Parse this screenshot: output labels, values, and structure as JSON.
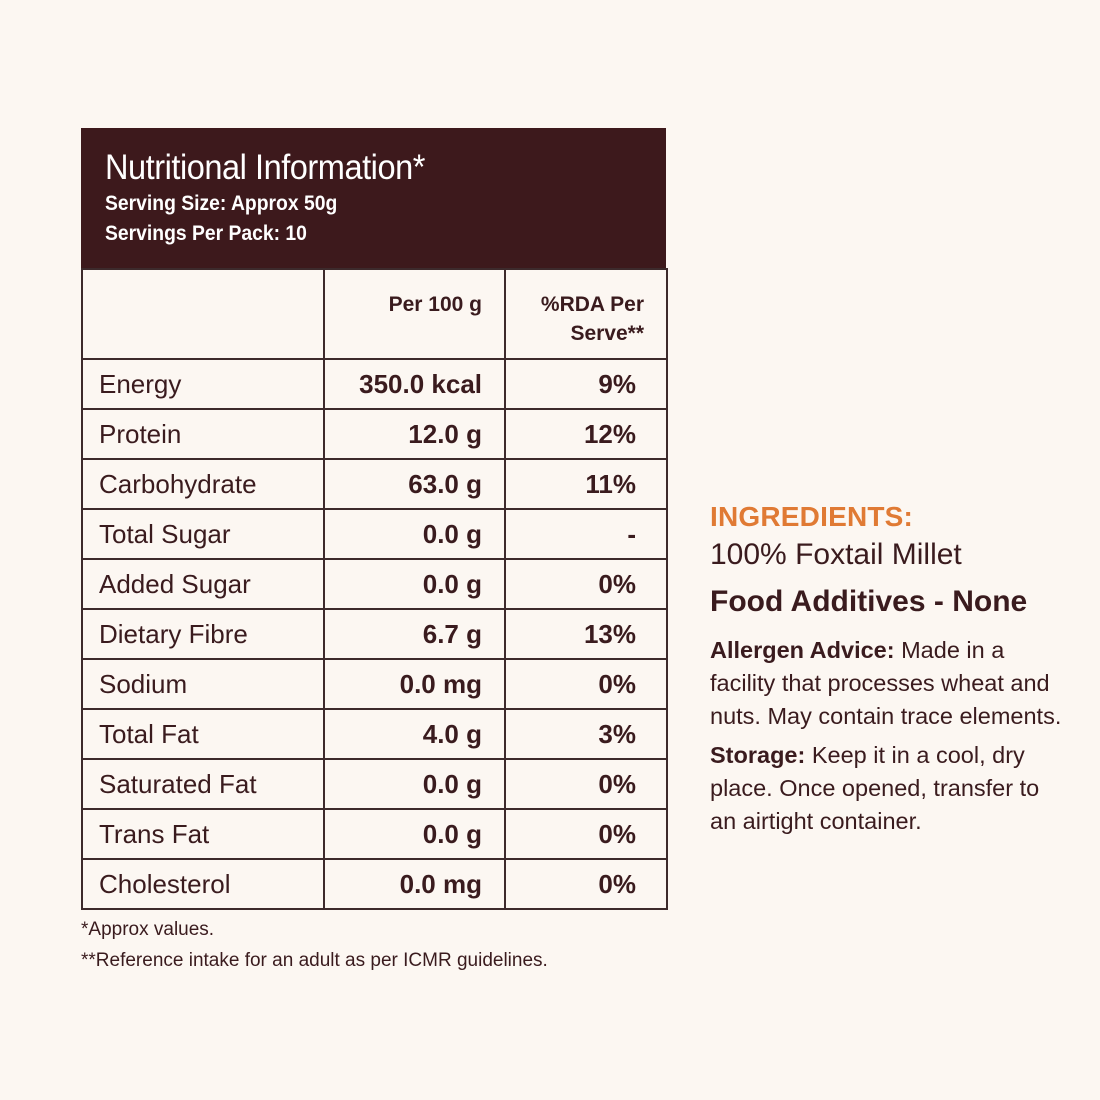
{
  "panel": {
    "title": "Nutritional Information*",
    "serving_size": "Serving Size: Approx 50g",
    "servings_per_pack": "Servings Per Pack: 10"
  },
  "table": {
    "columns": [
      "",
      "Per 100 g",
      "%RDA Per Serve**"
    ],
    "col_per100": "Per 100 g",
    "col_rda_line1": "%RDA Per",
    "col_rda_line2": "Serve**",
    "rows": [
      {
        "nutrient": "Energy",
        "per100": "350.0 kcal",
        "rda": "9%"
      },
      {
        "nutrient": "Protein",
        "per100": "12.0 g",
        "rda": "12%"
      },
      {
        "nutrient": "Carbohydrate",
        "per100": "63.0 g",
        "rda": "11%"
      },
      {
        "nutrient": "Total Sugar",
        "per100": "0.0 g",
        "rda": "-"
      },
      {
        "nutrient": "Added Sugar",
        "per100": "0.0 g",
        "rda": "0%"
      },
      {
        "nutrient": "Dietary Fibre",
        "per100": "6.7 g",
        "rda": "13%"
      },
      {
        "nutrient": "Sodium",
        "per100": "0.0 mg",
        "rda": "0%"
      },
      {
        "nutrient": "Total Fat",
        "per100": "4.0 g",
        "rda": "3%"
      },
      {
        "nutrient": "Saturated Fat",
        "per100": "0.0 g",
        "rda": "0%"
      },
      {
        "nutrient": "Trans Fat",
        "per100": "0.0 g",
        "rda": "0%"
      },
      {
        "nutrient": "Cholesterol",
        "per100": "0.0 mg",
        "rda": "0%"
      }
    ]
  },
  "footnotes": {
    "approx": "*Approx values.",
    "reference": "**Reference intake for an adult as per ICMR guidelines."
  },
  "side": {
    "ingredients_title": "INGREDIENTS:",
    "ingredients_value": "100% Foxtail Millet",
    "additives": "Food Additives - None",
    "allergen_label": "Allergen Advice:",
    "allergen_text": " Made in a facility that processes wheat and nuts. May contain trace elements.",
    "storage_label": "Storage:",
    "storage_text": " Keep it in a cool, dry place. Once opened, transfer to an airtight container."
  },
  "colors": {
    "background": "#fcf7f2",
    "header_bg": "#3d191c",
    "text": "#3a1b1e",
    "accent": "#e07a34"
  }
}
